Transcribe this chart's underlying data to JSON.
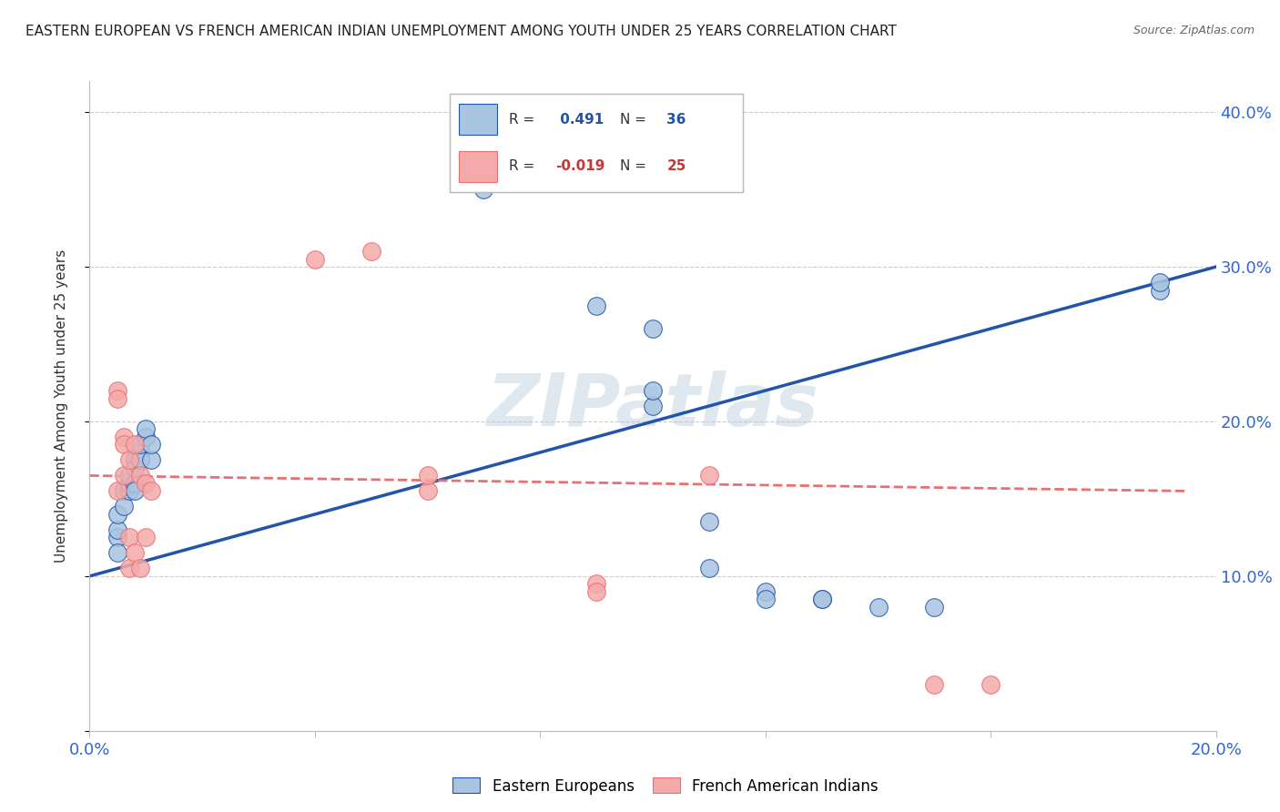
{
  "title": "EASTERN EUROPEAN VS FRENCH AMERICAN INDIAN UNEMPLOYMENT AMONG YOUTH UNDER 25 YEARS CORRELATION CHART",
  "source": "Source: ZipAtlas.com",
  "ylabel": "Unemployment Among Youth under 25 years",
  "watermark": "ZIPatlas",
  "blue_R": 0.491,
  "blue_N": 36,
  "pink_R": -0.019,
  "pink_N": 25,
  "blue_label": "Eastern Europeans",
  "pink_label": "French American Indians",
  "blue_color": "#A8C4E0",
  "pink_color": "#F4AAAA",
  "blue_line_color": "#2255AA",
  "pink_line_color": "#E87070",
  "xlim": [
    0.0,
    0.2
  ],
  "ylim": [
    0.0,
    0.42
  ],
  "yticks": [
    0.0,
    0.1,
    0.2,
    0.3,
    0.4
  ],
  "ytick_labels": [
    "",
    "10.0%",
    "20.0%",
    "30.0%",
    "40.0%"
  ],
  "blue_points": [
    [
      0.005,
      0.125
    ],
    [
      0.005,
      0.13
    ],
    [
      0.005,
      0.115
    ],
    [
      0.005,
      0.14
    ],
    [
      0.006,
      0.155
    ],
    [
      0.006,
      0.145
    ],
    [
      0.007,
      0.155
    ],
    [
      0.007,
      0.16
    ],
    [
      0.007,
      0.165
    ],
    [
      0.008,
      0.16
    ],
    [
      0.008,
      0.175
    ],
    [
      0.008,
      0.155
    ],
    [
      0.008,
      0.17
    ],
    [
      0.009,
      0.18
    ],
    [
      0.009,
      0.175
    ],
    [
      0.009,
      0.175
    ],
    [
      0.009,
      0.185
    ],
    [
      0.01,
      0.19
    ],
    [
      0.01,
      0.195
    ],
    [
      0.011,
      0.175
    ],
    [
      0.011,
      0.185
    ],
    [
      0.07,
      0.35
    ],
    [
      0.09,
      0.275
    ],
    [
      0.1,
      0.26
    ],
    [
      0.1,
      0.21
    ],
    [
      0.1,
      0.22
    ],
    [
      0.11,
      0.135
    ],
    [
      0.11,
      0.105
    ],
    [
      0.12,
      0.09
    ],
    [
      0.12,
      0.085
    ],
    [
      0.13,
      0.085
    ],
    [
      0.13,
      0.085
    ],
    [
      0.14,
      0.08
    ],
    [
      0.15,
      0.08
    ],
    [
      0.19,
      0.285
    ],
    [
      0.19,
      0.29
    ]
  ],
  "pink_points": [
    [
      0.005,
      0.155
    ],
    [
      0.005,
      0.22
    ],
    [
      0.005,
      0.215
    ],
    [
      0.006,
      0.165
    ],
    [
      0.006,
      0.19
    ],
    [
      0.006,
      0.185
    ],
    [
      0.007,
      0.175
    ],
    [
      0.007,
      0.125
    ],
    [
      0.007,
      0.105
    ],
    [
      0.008,
      0.185
    ],
    [
      0.008,
      0.115
    ],
    [
      0.009,
      0.165
    ],
    [
      0.009,
      0.105
    ],
    [
      0.01,
      0.16
    ],
    [
      0.01,
      0.125
    ],
    [
      0.011,
      0.155
    ],
    [
      0.04,
      0.305
    ],
    [
      0.05,
      0.31
    ],
    [
      0.06,
      0.155
    ],
    [
      0.06,
      0.165
    ],
    [
      0.09,
      0.095
    ],
    [
      0.09,
      0.09
    ],
    [
      0.11,
      0.165
    ],
    [
      0.15,
      0.03
    ],
    [
      0.16,
      0.03
    ]
  ],
  "blue_line_x": [
    0.0,
    0.2
  ],
  "blue_line_y": [
    0.1,
    0.3
  ],
  "pink_line_x": [
    0.0,
    0.195
  ],
  "pink_line_y": [
    0.165,
    0.155
  ],
  "background_color": "#FFFFFF",
  "grid_color": "#CCCCCC"
}
